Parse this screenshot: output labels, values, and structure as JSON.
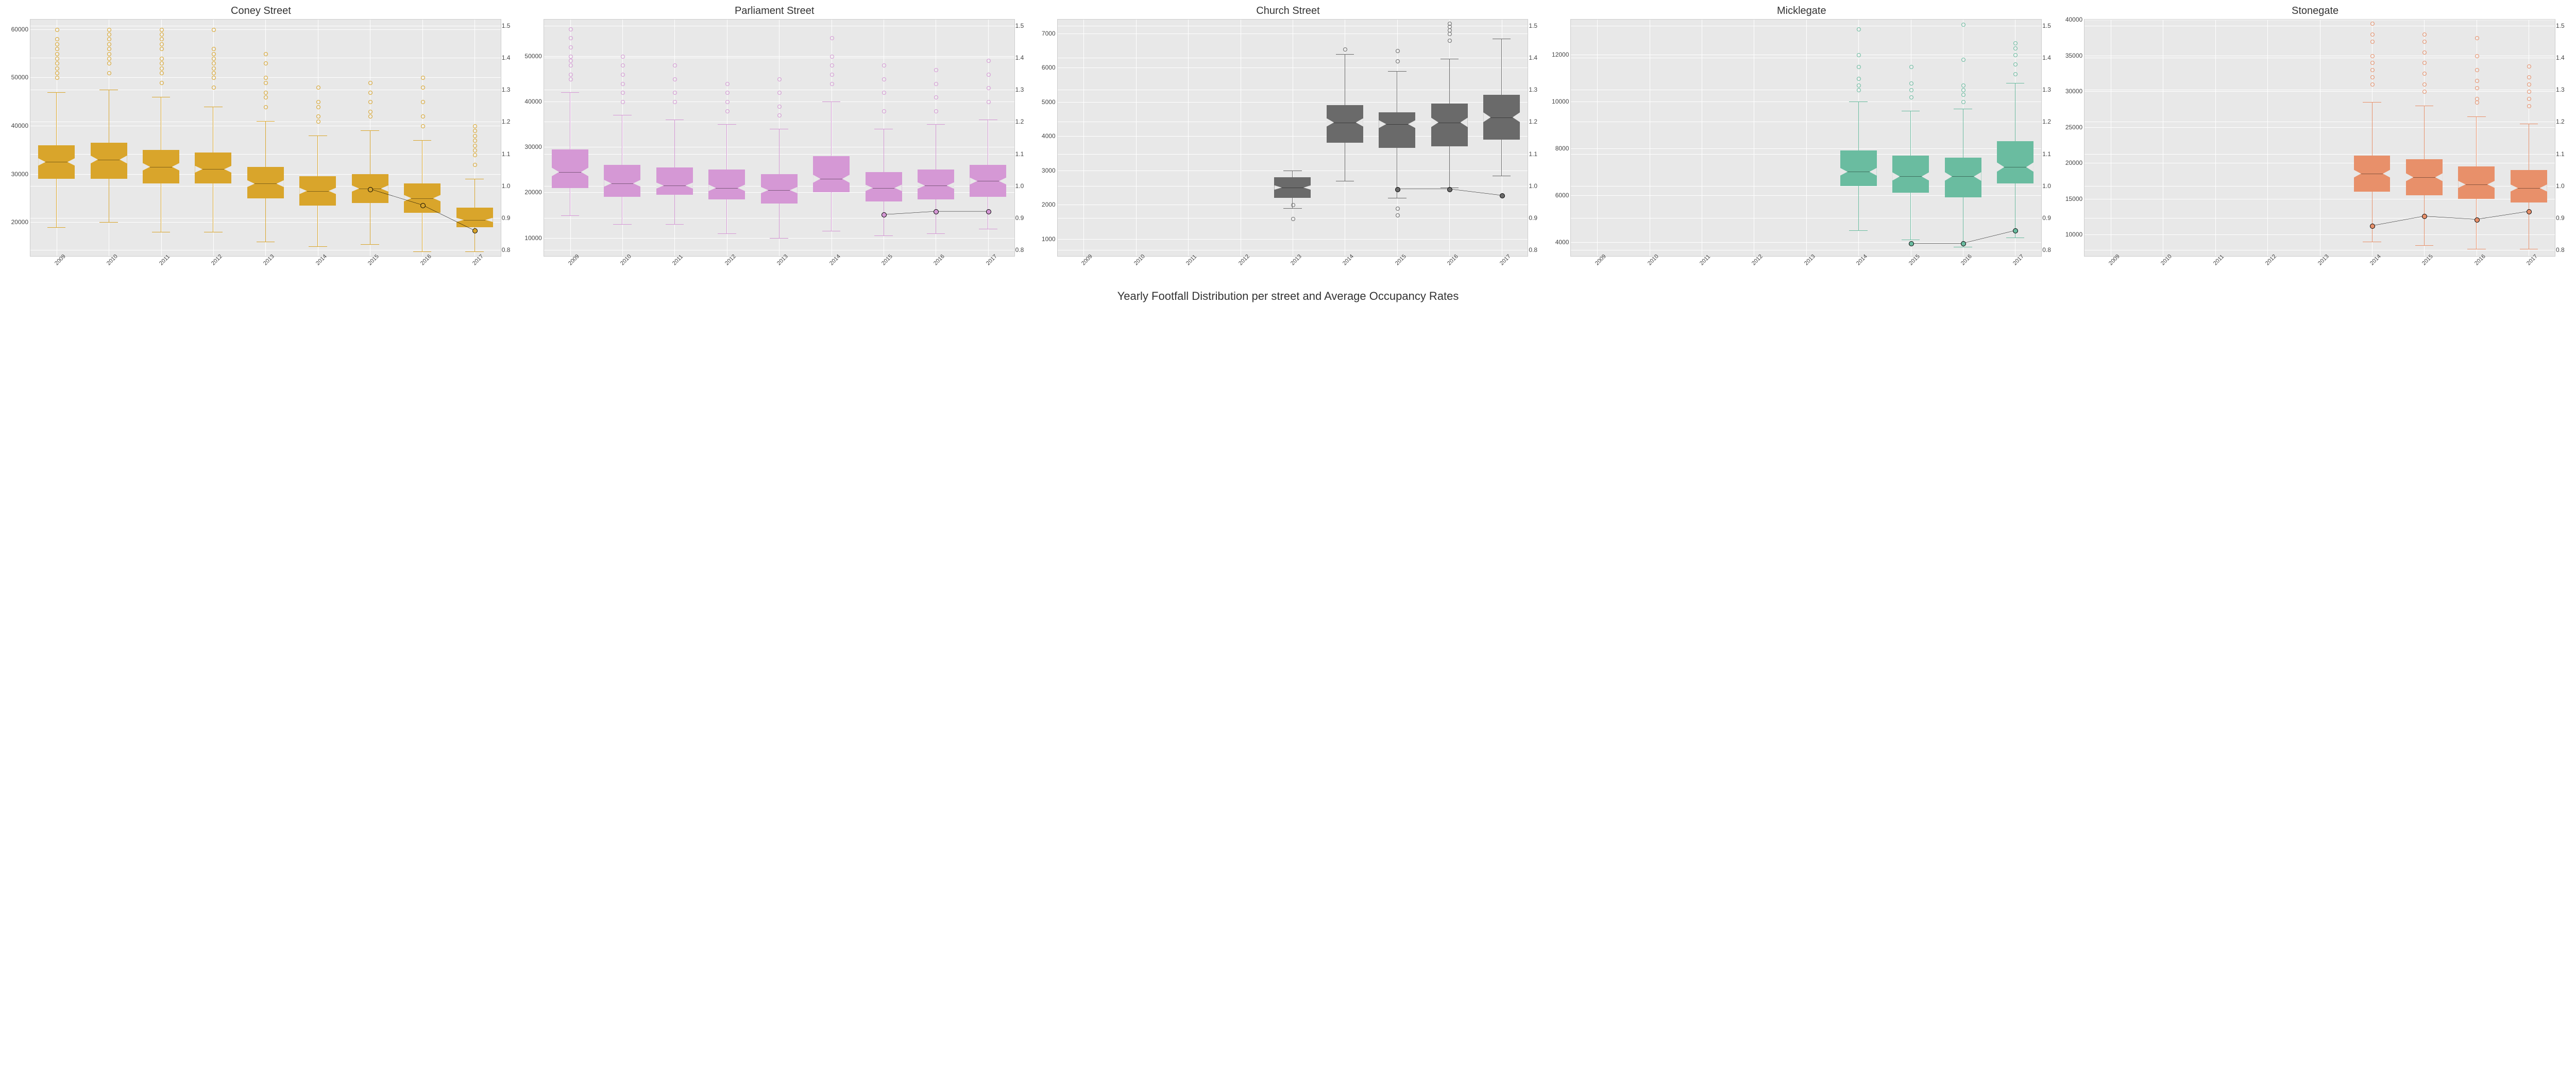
{
  "main_title": "Yearly Footfall Distribution per street and Average Occupancy Rates",
  "years": [
    "2009",
    "2010",
    "2011",
    "2012",
    "2013",
    "2014",
    "2015",
    "2016",
    "2017"
  ],
  "background_color": "#e8e8e8",
  "grid_color": "#ffffff",
  "occ_axis": {
    "min": 0.78,
    "max": 1.52,
    "ticks": [
      0.8,
      0.9,
      1.0,
      1.1,
      1.2,
      1.3,
      1.4,
      1.5
    ]
  },
  "panels": [
    {
      "title": "Coney Street",
      "color": "#d9a52b",
      "y_left": {
        "min": 13000,
        "max": 62000,
        "ticks": [
          20000,
          30000,
          40000,
          50000,
          60000
        ]
      },
      "boxes": [
        {
          "year": "2009",
          "q1": 29000,
          "q3": 36000,
          "med": 32500,
          "wlo": 19000,
          "whi": 47000,
          "out": [
            50000,
            51000,
            52000,
            53000,
            54000,
            55000,
            56000,
            57000,
            58000,
            60000
          ]
        },
        {
          "year": "2010",
          "q1": 29000,
          "q3": 36500,
          "med": 33000,
          "wlo": 20000,
          "whi": 47500,
          "out": [
            51000,
            53000,
            54000,
            55000,
            56000,
            57000,
            58000,
            59000,
            60000
          ]
        },
        {
          "year": "2011",
          "q1": 28000,
          "q3": 35000,
          "med": 31500,
          "wlo": 18000,
          "whi": 46000,
          "out": [
            49000,
            51000,
            52000,
            53000,
            54000,
            56000,
            57000,
            58000,
            59000,
            60000
          ]
        },
        {
          "year": "2012",
          "q1": 28000,
          "q3": 34500,
          "med": 31000,
          "wlo": 18000,
          "whi": 44000,
          "out": [
            48000,
            50000,
            51000,
            52000,
            53000,
            54000,
            55000,
            56000,
            60000
          ]
        },
        {
          "year": "2013",
          "q1": 25000,
          "q3": 31500,
          "med": 28000,
          "wlo": 16000,
          "whi": 41000,
          "out": [
            44000,
            46000,
            47000,
            49000,
            50000,
            53000,
            55000
          ]
        },
        {
          "year": "2014",
          "q1": 23500,
          "q3": 29500,
          "med": 26500,
          "wlo": 15000,
          "whi": 38000,
          "out": [
            41000,
            42000,
            44000,
            45000,
            48000
          ]
        },
        {
          "year": "2015",
          "q1": 24000,
          "q3": 30000,
          "med": 27000,
          "wlo": 15500,
          "whi": 39000,
          "out": [
            42000,
            43000,
            45000,
            47000,
            49000
          ]
        },
        {
          "year": "2016",
          "q1": 22000,
          "q3": 28000,
          "med": 25000,
          "wlo": 14000,
          "whi": 37000,
          "out": [
            40000,
            42000,
            45000,
            48000,
            50000
          ]
        },
        {
          "year": "2017",
          "q1": 19000,
          "q3": 23000,
          "med": 20500,
          "wlo": 14000,
          "whi": 29000,
          "out": [
            32000,
            34000,
            35000,
            36000,
            37000,
            38000,
            39000,
            40000
          ]
        }
      ],
      "occupancy": [
        {
          "year": "2015",
          "val": 0.99
        },
        {
          "year": "2016",
          "val": 0.94
        },
        {
          "year": "2017",
          "val": 0.86
        }
      ]
    },
    {
      "title": "Parliament Street",
      "color": "#d598d5",
      "y_left": {
        "min": 6000,
        "max": 58000,
        "ticks": [
          10000,
          20000,
          30000,
          40000,
          50000
        ]
      },
      "boxes": [
        {
          "year": "2009",
          "q1": 21000,
          "q3": 29500,
          "med": 24500,
          "wlo": 15000,
          "whi": 42000,
          "out": [
            45000,
            46000,
            48000,
            49000,
            50000,
            52000,
            54000,
            56000
          ]
        },
        {
          "year": "2010",
          "q1": 19000,
          "q3": 26000,
          "med": 22000,
          "wlo": 13000,
          "whi": 37000,
          "out": [
            40000,
            42000,
            44000,
            46000,
            48000,
            50000
          ]
        },
        {
          "year": "2011",
          "q1": 19500,
          "q3": 25500,
          "med": 21500,
          "wlo": 13000,
          "whi": 36000,
          "out": [
            40000,
            42000,
            45000,
            48000
          ]
        },
        {
          "year": "2012",
          "q1": 18500,
          "q3": 25000,
          "med": 21000,
          "wlo": 11000,
          "whi": 35000,
          "out": [
            38000,
            40000,
            42000,
            44000
          ]
        },
        {
          "year": "2013",
          "q1": 17500,
          "q3": 24000,
          "med": 20500,
          "wlo": 10000,
          "whi": 34000,
          "out": [
            37000,
            39000,
            42000,
            45000
          ]
        },
        {
          "year": "2014",
          "q1": 20000,
          "q3": 28000,
          "med": 23000,
          "wlo": 11500,
          "whi": 40000,
          "out": [
            44000,
            46000,
            48000,
            50000,
            54000
          ]
        },
        {
          "year": "2015",
          "q1": 18000,
          "q3": 24500,
          "med": 21000,
          "wlo": 10500,
          "whi": 34000,
          "out": [
            38000,
            42000,
            45000,
            48000
          ]
        },
        {
          "year": "2016",
          "q1": 18500,
          "q3": 25000,
          "med": 21500,
          "wlo": 11000,
          "whi": 35000,
          "out": [
            38000,
            41000,
            44000,
            47000
          ]
        },
        {
          "year": "2017",
          "q1": 19000,
          "q3": 26000,
          "med": 22500,
          "wlo": 12000,
          "whi": 36000,
          "out": [
            40000,
            43000,
            46000,
            49000
          ]
        }
      ],
      "occupancy": [
        {
          "year": "2015",
          "val": 0.91
        },
        {
          "year": "2016",
          "val": 0.92
        },
        {
          "year": "2017",
          "val": 0.92
        }
      ]
    },
    {
      "title": "Church Street",
      "color": "#6a6a6a",
      "y_left": {
        "min": 500,
        "max": 7400,
        "ticks": [
          1000,
          2000,
          3000,
          4000,
          5000,
          6000,
          7000
        ]
      },
      "boxes": [
        {
          "year": "2013",
          "q1": 2200,
          "q3": 2800,
          "med": 2500,
          "wlo": 1900,
          "whi": 3000,
          "out": [
            1600,
            2000
          ]
        },
        {
          "year": "2014",
          "q1": 3800,
          "q3": 4900,
          "med": 4400,
          "wlo": 2700,
          "whi": 6400,
          "out": [
            6550
          ]
        },
        {
          "year": "2015",
          "q1": 3650,
          "q3": 4700,
          "med": 4350,
          "wlo": 2200,
          "whi": 5900,
          "out": [
            1700,
            1900,
            6200,
            6500
          ]
        },
        {
          "year": "2016",
          "q1": 3700,
          "q3": 4950,
          "med": 4400,
          "wlo": 2500,
          "whi": 6250,
          "out": [
            6800,
            7000,
            7100,
            7200,
            7300
          ]
        },
        {
          "year": "2017",
          "q1": 3900,
          "q3": 5200,
          "med": 4550,
          "wlo": 2850,
          "whi": 6850,
          "out": []
        }
      ],
      "occupancy": [
        {
          "year": "2015",
          "val": 0.99
        },
        {
          "year": "2016",
          "val": 0.99
        },
        {
          "year": "2017",
          "val": 0.97
        }
      ]
    },
    {
      "title": "Micklegate",
      "color": "#6abca0",
      "y_left": {
        "min": 3400,
        "max": 13500,
        "ticks": [
          4000,
          6000,
          8000,
          10000,
          12000
        ]
      },
      "boxes": [
        {
          "year": "2014",
          "q1": 6400,
          "q3": 7900,
          "med": 7000,
          "wlo": 4500,
          "whi": 10000,
          "out": [
            10500,
            10700,
            11000,
            11500,
            12000,
            13100
          ]
        },
        {
          "year": "2015",
          "q1": 6100,
          "q3": 7700,
          "med": 6800,
          "wlo": 4100,
          "whi": 9600,
          "out": [
            10200,
            10500,
            10800,
            11500
          ]
        },
        {
          "year": "2016",
          "q1": 5900,
          "q3": 7600,
          "med": 6800,
          "wlo": 3800,
          "whi": 9700,
          "out": [
            10000,
            10300,
            10500,
            10700,
            11800,
            13300
          ]
        },
        {
          "year": "2017",
          "q1": 6500,
          "q3": 8300,
          "med": 7200,
          "wlo": 4200,
          "whi": 10800,
          "out": [
            11200,
            11600,
            12000,
            12300,
            12500
          ]
        }
      ],
      "occupancy": [
        {
          "year": "2015",
          "val": 0.82
        },
        {
          "year": "2016",
          "val": 0.82
        },
        {
          "year": "2017",
          "val": 0.86
        }
      ]
    },
    {
      "title": "Stonegate",
      "color": "#e8906a",
      "y_left": {
        "min": 7000,
        "max": 40000,
        "ticks": [
          10000,
          15000,
          20000,
          25000,
          30000,
          35000,
          40000
        ]
      },
      "boxes": [
        {
          "year": "2014",
          "q1": 16000,
          "q3": 21000,
          "med": 18500,
          "wlo": 9000,
          "whi": 28500,
          "out": [
            31000,
            32000,
            33000,
            34000,
            35000,
            37000,
            38000,
            39500
          ]
        },
        {
          "year": "2015",
          "q1": 15500,
          "q3": 20500,
          "med": 18000,
          "wlo": 8500,
          "whi": 28000,
          "out": [
            30000,
            31000,
            32500,
            34000,
            35500,
            37000,
            38000
          ]
        },
        {
          "year": "2016",
          "q1": 15000,
          "q3": 19500,
          "med": 17000,
          "wlo": 8000,
          "whi": 26500,
          "out": [
            28500,
            29000,
            30500,
            31500,
            33000,
            35000,
            37500
          ]
        },
        {
          "year": "2017",
          "q1": 14500,
          "q3": 19000,
          "med": 16500,
          "wlo": 8000,
          "whi": 25500,
          "out": [
            28000,
            29000,
            30000,
            31000,
            32000,
            33500
          ]
        }
      ],
      "occupancy": [
        {
          "year": "2014",
          "val": 0.875
        },
        {
          "year": "2015",
          "val": 0.905
        },
        {
          "year": "2016",
          "val": 0.895
        },
        {
          "year": "2017",
          "val": 0.92
        }
      ]
    }
  ]
}
